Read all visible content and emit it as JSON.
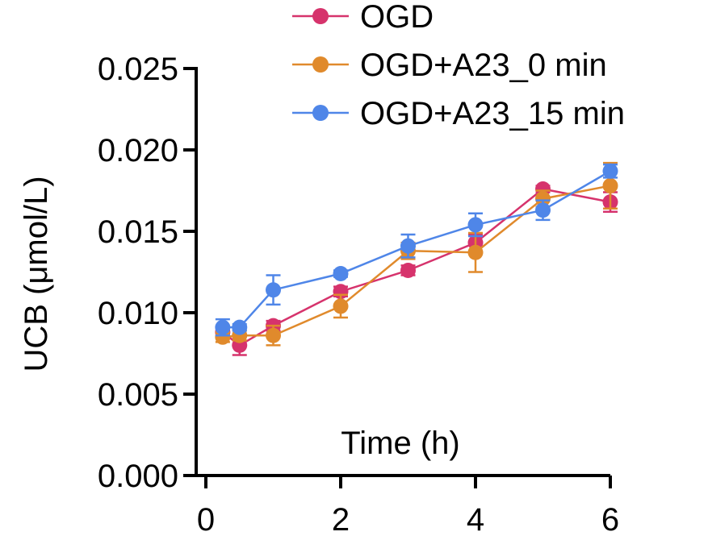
{
  "chart_data": {
    "type": "line",
    "title": "",
    "xlabel": "Time (h)",
    "ylabel": "UCB (μmol/L)",
    "xlim": [
      0,
      6
    ],
    "ylim": [
      0,
      0.025
    ],
    "x_ticks": [
      0,
      2,
      4,
      6
    ],
    "y_ticks": [
      0.0,
      0.005,
      0.01,
      0.015,
      0.02,
      0.025
    ],
    "x_tick_labels": [
      "0",
      "2",
      "4",
      "6"
    ],
    "y_tick_labels": [
      "0.000",
      "0.005",
      "0.010",
      "0.015",
      "0.020",
      "0.025"
    ],
    "legend_position": "top-right",
    "grid": false,
    "series": [
      {
        "name": "OGD",
        "color": "#D6336C",
        "x": [
          0.25,
          0.5,
          1,
          2,
          3,
          4,
          5,
          6
        ],
        "y": [
          0.0088,
          0.008,
          0.0092,
          0.0113,
          0.0126,
          0.0143,
          0.0176,
          0.0168
        ],
        "err": [
          0.0002,
          0.0006,
          0.0003,
          0.0003,
          0.0003,
          0.0005,
          0.0002,
          0.0006
        ]
      },
      {
        "name": "OGD+A23_0 min",
        "color": "#E08A2C",
        "x": [
          0.25,
          0.5,
          1,
          2,
          3,
          4,
          5,
          6
        ],
        "y": [
          0.0085,
          0.0086,
          0.0086,
          0.0104,
          0.0138,
          0.0137,
          0.017,
          0.0178
        ],
        "err": [
          0.0003,
          0.0003,
          0.0006,
          0.0007,
          0.0005,
          0.0012,
          0.0005,
          0.0014
        ]
      },
      {
        "name": "OGD+A23_15 min",
        "color": "#4F86E8",
        "x": [
          0.25,
          0.5,
          1,
          2,
          3,
          4,
          5,
          6
        ],
        "y": [
          0.0091,
          0.0091,
          0.0114,
          0.0124,
          0.0141,
          0.0154,
          0.0163,
          0.0187
        ],
        "err": [
          0.0005,
          0.0002,
          0.0009,
          0.0002,
          0.0007,
          0.0007,
          0.0006,
          0.0004
        ]
      }
    ]
  }
}
